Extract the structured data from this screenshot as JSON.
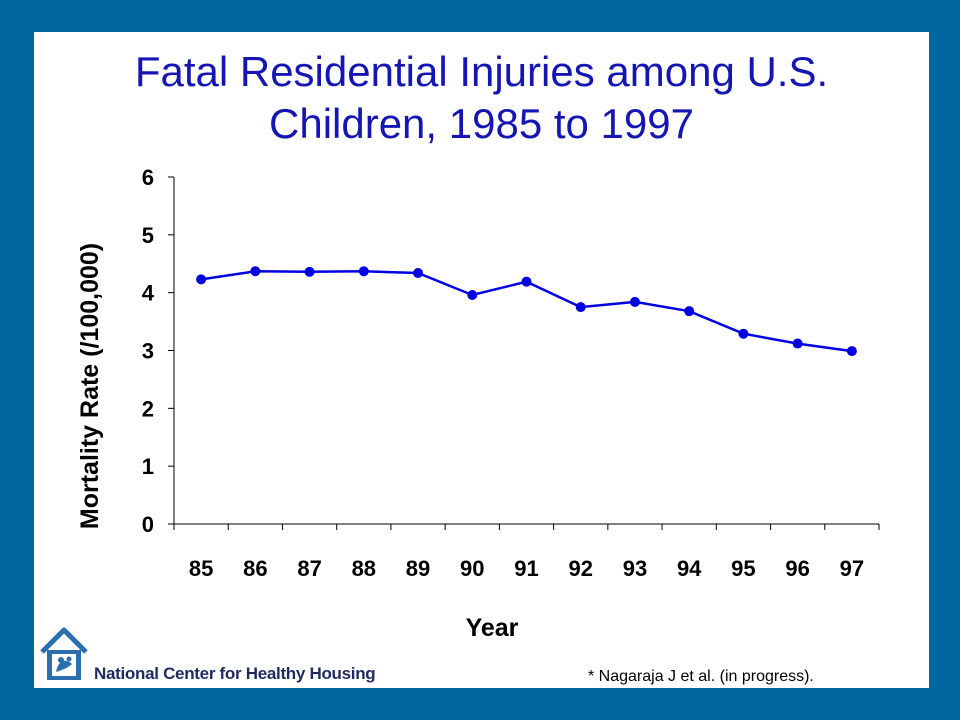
{
  "slide": {
    "title_line1": "Fatal Residential Injuries among U.S.",
    "title_line2": "Children, 1985 to 1997",
    "footnote": "* Nagaraja J et al. (in progress).",
    "logo_text": "National Center for Healthy Housing",
    "logo_icon": "house-icon"
  },
  "colors": {
    "frame": "#0066A0",
    "title": "#1515B4",
    "series": "#0000E0"
  },
  "chart_data": {
    "type": "line",
    "title": "Fatal Residential Injuries among U.S. Children, 1985 to 1997",
    "xlabel": "Year",
    "ylabel": "Mortality Rate (/100,000)",
    "categories": [
      "85",
      "86",
      "87",
      "88",
      "89",
      "90",
      "91",
      "92",
      "93",
      "94",
      "95",
      "96",
      "97"
    ],
    "series": [
      {
        "values": [
          4.23,
          4.37,
          4.36,
          4.37,
          4.34,
          3.96,
          4.19,
          3.75,
          3.84,
          3.68,
          3.29,
          3.12,
          2.99
        ]
      }
    ],
    "ylim": [
      0,
      6
    ],
    "yticks": [
      0,
      1,
      2,
      3,
      4,
      5,
      6
    ],
    "grid": false,
    "legend": "none"
  }
}
